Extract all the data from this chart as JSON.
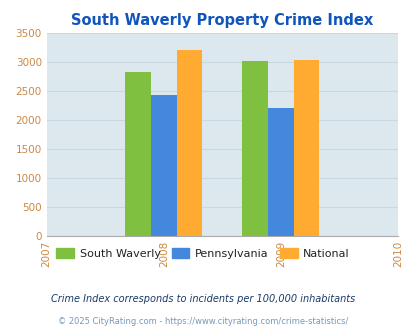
{
  "title": "South Waverly Property Crime Index",
  "years": [
    2007,
    2008,
    2009,
    2010
  ],
  "bar_years": [
    2008,
    2009
  ],
  "south_waverly": [
    2820,
    3020
  ],
  "pennsylvania": [
    2430,
    2200
  ],
  "national": [
    3210,
    3040
  ],
  "bar_colors": {
    "south_waverly": "#80c040",
    "pennsylvania": "#4488dd",
    "national": "#ffaa30"
  },
  "ylim": [
    0,
    3500
  ],
  "yticks": [
    0,
    500,
    1000,
    1500,
    2000,
    2500,
    3000,
    3500
  ],
  "legend_labels": [
    "South Waverly",
    "Pennsylvania",
    "National"
  ],
  "footnote1": "Crime Index corresponds to incidents per 100,000 inhabitants",
  "footnote2": "© 2025 CityRating.com - https://www.cityrating.com/crime-statistics/",
  "bg_color": "#dce8ed",
  "title_color": "#1055bb",
  "tick_color": "#cc8844",
  "legend_text_color": "#222222",
  "footnote1_color": "#1a3a6a",
  "footnote2_color": "#7799bb",
  "grid_color": "#c8d8de",
  "bar_width": 0.22
}
